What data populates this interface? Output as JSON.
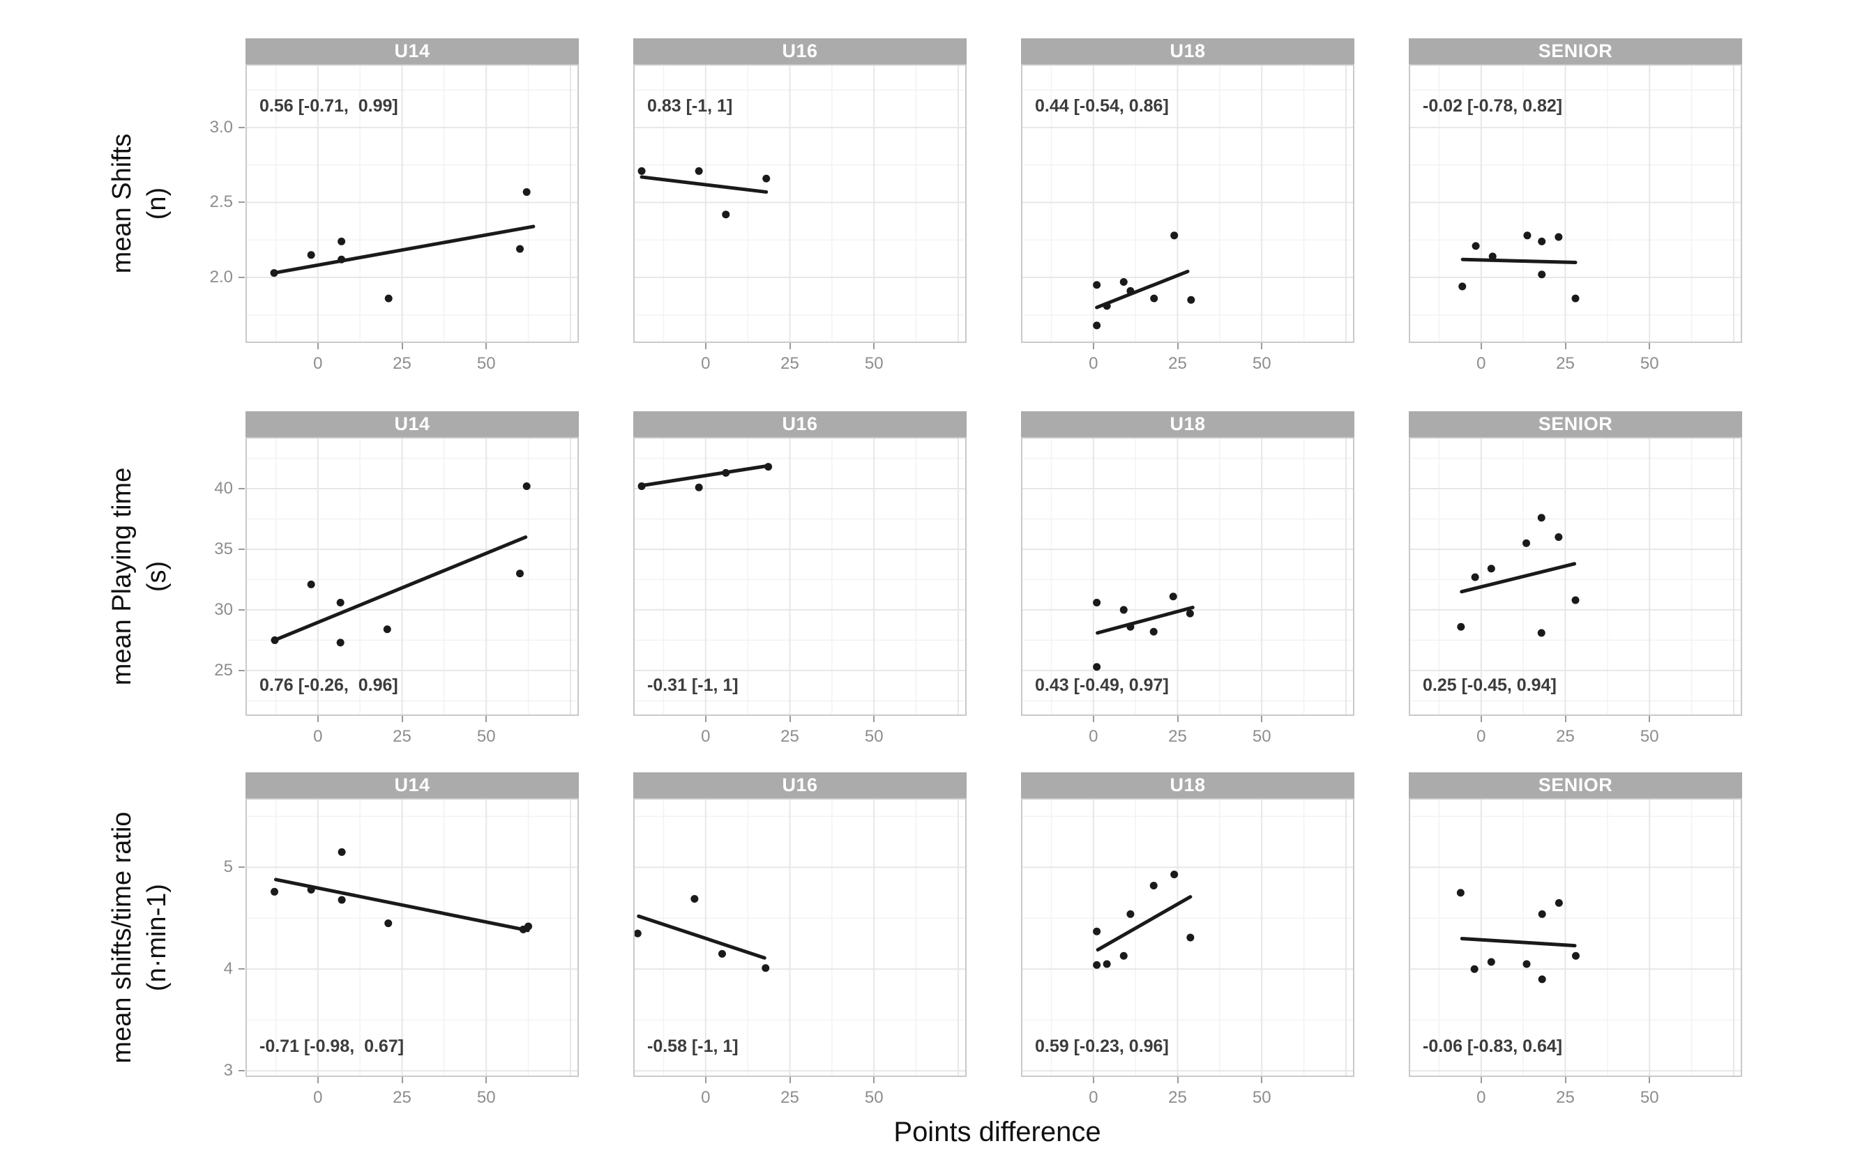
{
  "figure": {
    "xlabel": "Points difference"
  },
  "style": {
    "strip_bg": "#ababab",
    "strip_text_color": "#ffffff",
    "point_color": "#1a1a1a",
    "trend_color": "#1a1a1a",
    "grid_major_color": "#e7e7e7",
    "grid_minor_color": "#f3f3f3",
    "panel_border_color": "#c9c9c9",
    "panel_bg": "#ffffff",
    "tick_label_color": "#8d8d8d",
    "tick_mark_color": "#9a9a9a",
    "annotation_color": "#3c3c3c",
    "axis_title_color": "#111111"
  },
  "chart_data": {
    "type": "scatter",
    "title": "",
    "xlabel": "Points difference",
    "x_domain": [
      -21.5,
      77.5
    ],
    "x_ticks": [
      0,
      25,
      50
    ],
    "x_tick_labels": [
      "0",
      "25",
      "50"
    ],
    "x_grid_major": [
      0,
      25,
      50,
      75
    ],
    "x_grid_minor": [
      -12.5,
      12.5,
      37.5,
      62.5
    ],
    "grid": true,
    "legend": "none",
    "columns": [
      "U14",
      "U16",
      "U18",
      "SENIOR"
    ],
    "rows": [
      {
        "ylabel_line1": "mean Shifts",
        "ylabel_line2": "(n)",
        "y_domain": [
          1.563,
          3.423
        ],
        "y_ticks": [
          2.0,
          2.5,
          3.0
        ],
        "y_tick_labels": [
          "2.0",
          "2.5",
          "3.0"
        ],
        "y_grid_minor": [
          1.75,
          2.25,
          2.75,
          3.25
        ],
        "annotation_position": "top",
        "panels": [
          {
            "facet": "U14",
            "annotation": "0.56 [-0.71,  0.99]",
            "points": [
              [
                -13,
                2.03
              ],
              [
                -2,
                2.15
              ],
              [
                7,
                2.24
              ],
              [
                7,
                2.12
              ],
              [
                21,
                1.86
              ],
              [
                62,
                2.57
              ],
              [
                60,
                2.19
              ]
            ],
            "trend": [
              [
                -13,
                2.03
              ],
              [
                64,
                2.34
              ]
            ]
          },
          {
            "facet": "U16",
            "annotation": "0.83 [-1, 1]",
            "points": [
              [
                -19,
                2.71
              ],
              [
                -2,
                2.71
              ],
              [
                18,
                2.66
              ],
              [
                6,
                2.42
              ]
            ],
            "trend": [
              [
                -19,
                2.67
              ],
              [
                18,
                2.57
              ]
            ]
          },
          {
            "facet": "U18",
            "annotation": "0.44 [-0.54, 0.86]",
            "points": [
              [
                1,
                1.95
              ],
              [
                9,
                1.97
              ],
              [
                11,
                1.91
              ],
              [
                4,
                1.81
              ],
              [
                18,
                1.86
              ],
              [
                29,
                1.85
              ],
              [
                24,
                2.28
              ],
              [
                1,
                1.68
              ]
            ],
            "trend": [
              [
                1,
                1.8
              ],
              [
                28,
                2.04
              ]
            ]
          },
          {
            "facet": "SENIOR",
            "annotation": "-0.02 [-0.78, 0.82]",
            "points": [
              [
                -1.6,
                2.21
              ],
              [
                3.4,
                2.14
              ],
              [
                13.7,
                2.28
              ],
              [
                18,
                2.24
              ],
              [
                23,
                2.27
              ],
              [
                18,
                2.02
              ],
              [
                -5.6,
                1.94
              ],
              [
                28,
                1.86
              ]
            ],
            "trend": [
              [
                -5.5,
                2.12
              ],
              [
                28,
                2.1
              ]
            ]
          }
        ]
      },
      {
        "ylabel_line1": "mean Playing time",
        "ylabel_line2": "(s)",
        "y_domain": [
          21.26,
          44.25
        ],
        "y_ticks": [
          25,
          30,
          35,
          40
        ],
        "y_tick_labels": [
          "25",
          "30",
          "35",
          "40"
        ],
        "y_grid_minor": [
          22.5,
          27.5,
          32.5,
          37.5,
          42.5
        ],
        "annotation_position": "bottom",
        "panels": [
          {
            "facet": "U14",
            "annotation": "0.76 [-0.26,  0.96]",
            "points": [
              [
                -2,
                32.1
              ],
              [
                6.7,
                30.6
              ],
              [
                6.7,
                27.3
              ],
              [
                -12.8,
                27.5
              ],
              [
                20.6,
                28.4
              ],
              [
                62,
                40.2
              ],
              [
                60,
                33.0
              ]
            ],
            "trend": [
              [
                -12.9,
                27.5
              ],
              [
                61.7,
                36.0
              ]
            ]
          },
          {
            "facet": "U16",
            "annotation": "-0.31 [-1, 1]",
            "points": [
              [
                -19,
                40.2
              ],
              [
                -2,
                40.1
              ],
              [
                6,
                41.3
              ],
              [
                18.6,
                41.8
              ]
            ],
            "trend": [
              [
                -19,
                40.25
              ],
              [
                19,
                41.9
              ]
            ]
          },
          {
            "facet": "U18",
            "annotation": "0.43 [-0.49, 0.97]",
            "points": [
              [
                1,
                30.6
              ],
              [
                9,
                30.0
              ],
              [
                11,
                28.6
              ],
              [
                17.9,
                28.2
              ],
              [
                23.7,
                31.1
              ],
              [
                28.7,
                29.7
              ],
              [
                1,
                25.3
              ]
            ],
            "trend": [
              [
                1.2,
                28.1
              ],
              [
                29.5,
                30.2
              ]
            ]
          },
          {
            "facet": "SENIOR",
            "annotation": "0.25 [-0.45, 0.94]",
            "points": [
              [
                17.9,
                37.6
              ],
              [
                13.4,
                35.5
              ],
              [
                23,
                36.0
              ],
              [
                -1.8,
                32.7
              ],
              [
                3,
                33.4
              ],
              [
                28,
                30.8
              ],
              [
                -6,
                28.6
              ],
              [
                17.9,
                28.1
              ]
            ],
            "trend": [
              [
                -5.8,
                31.5
              ],
              [
                27.7,
                33.8
              ]
            ]
          }
        ]
      },
      {
        "ylabel_line1": "mean shifts/time ratio",
        "ylabel_line2": "(n·min-1)",
        "y_domain": [
          2.94,
          5.68
        ],
        "y_ticks": [
          3,
          4,
          5
        ],
        "y_tick_labels": [
          "3",
          "4",
          "5"
        ],
        "y_grid_minor": [
          3.5,
          4.5,
          5.5
        ],
        "annotation_position": "bottom",
        "panels": [
          {
            "facet": "U14",
            "annotation": "-0.71 [-0.98,  0.67]",
            "points": [
              [
                -12.9,
                4.76
              ],
              [
                -2,
                4.78
              ],
              [
                7.1,
                5.15
              ],
              [
                7.1,
                4.68
              ],
              [
                20.9,
                4.45
              ],
              [
                61,
                4.39
              ],
              [
                62.5,
                4.42
              ]
            ],
            "trend": [
              [
                -12.5,
                4.88
              ],
              [
                62.4,
                4.38
              ]
            ]
          },
          {
            "facet": "U16",
            "annotation": "-0.58 [-1, 1]",
            "points": [
              [
                -3.3,
                4.69
              ],
              [
                -20.2,
                4.35
              ],
              [
                4.9,
                4.15
              ],
              [
                17.8,
                4.01
              ]
            ],
            "trend": [
              [
                -19.9,
                4.52
              ],
              [
                17.5,
                4.11
              ]
            ]
          },
          {
            "facet": "U18",
            "annotation": "0.59 [-0.23, 0.96]",
            "points": [
              [
                1,
                4.37
              ],
              [
                1,
                4.04
              ],
              [
                4,
                4.05
              ],
              [
                9,
                4.13
              ],
              [
                11,
                4.54
              ],
              [
                17.9,
                4.82
              ],
              [
                24,
                4.93
              ],
              [
                28.8,
                4.31
              ]
            ],
            "trend": [
              [
                1.3,
                4.19
              ],
              [
                28.8,
                4.71
              ]
            ]
          },
          {
            "facet": "SENIOR",
            "annotation": "-0.06 [-0.83, 0.64]",
            "points": [
              [
                -6.1,
                4.75
              ],
              [
                23.1,
                4.65
              ],
              [
                18.1,
                4.54
              ],
              [
                -2,
                4.0
              ],
              [
                3,
                4.07
              ],
              [
                13.5,
                4.05
              ],
              [
                18.1,
                3.9
              ],
              [
                28.1,
                4.13
              ]
            ],
            "trend": [
              [
                -5.7,
                4.3
              ],
              [
                27.8,
                4.23
              ]
            ]
          }
        ]
      }
    ]
  }
}
